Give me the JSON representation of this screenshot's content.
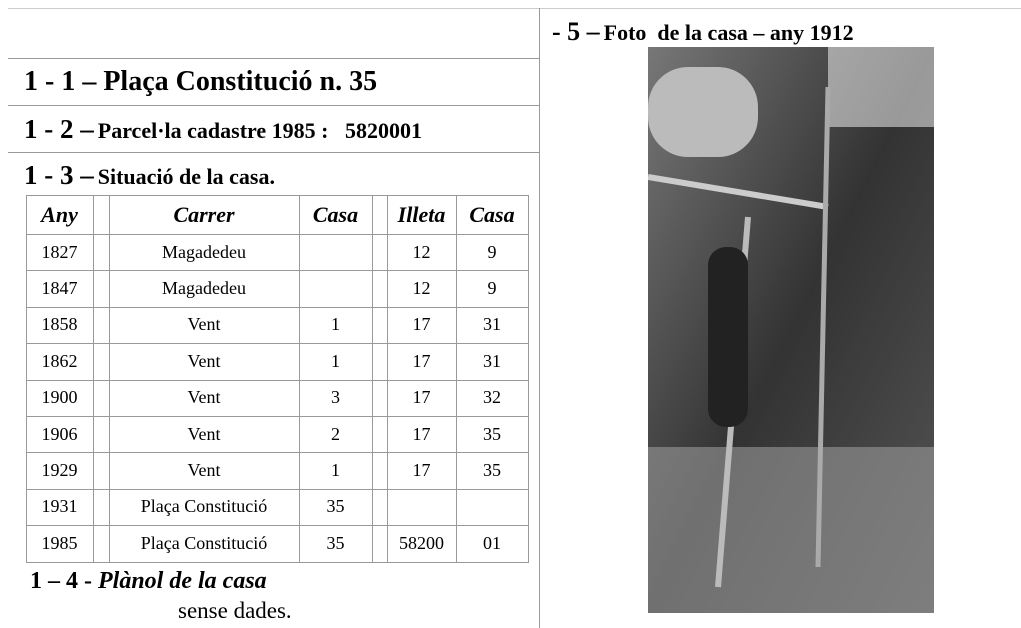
{
  "sections": [
    {
      "num": "1 - 1 –",
      "text": "Plaça Constitució n. 35"
    },
    {
      "num": "1 - 2 –",
      "text": "Parcel·la cadastre 1985 :   5820001"
    },
    {
      "num": "1 - 3 –",
      "text": "Situació de la casa."
    }
  ],
  "table": {
    "header": [
      "Any",
      "Carrer",
      "Casa",
      "Illeta",
      "Casa"
    ],
    "rows": [
      [
        "1827",
        "Magadedeu",
        null,
        "12",
        "9"
      ],
      [
        "1847",
        "Magadedeu",
        null,
        "12",
        "9"
      ],
      [
        "1858",
        "Vent",
        "1",
        "17",
        "31"
      ],
      [
        "1862",
        "Vent",
        "1",
        "17",
        "31"
      ],
      [
        "1900",
        "Vent",
        "3",
        "17",
        "32"
      ],
      [
        "1906",
        "Vent",
        "2",
        "17",
        "35"
      ],
      [
        "1929",
        "Vent",
        "1",
        "17",
        "35"
      ],
      [
        "1931",
        "Plaça Constitució",
        "35",
        null,
        null
      ],
      [
        "1985",
        "Plaça Constitució",
        "35",
        "58200",
        "01"
      ]
    ]
  },
  "plan": {
    "num": "1 – 4  -",
    "title": "Plànol de la casa",
    "note": "sense dades."
  },
  "photo": {
    "num": "- 5 –",
    "caption": "Foto  de la casa – any 1912"
  }
}
